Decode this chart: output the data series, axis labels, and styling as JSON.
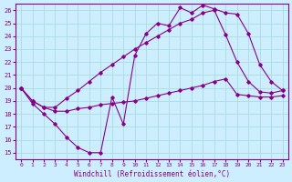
{
  "xlabel": "Windchill (Refroidissement éolien,°C)",
  "bg_color": "#cceeff",
  "line_color": "#880088",
  "grid_color": "#aadddd",
  "xlim": [
    -0.5,
    23.5
  ],
  "ylim": [
    14.5,
    26.5
  ],
  "xticks": [
    0,
    1,
    2,
    3,
    4,
    5,
    6,
    7,
    8,
    9,
    10,
    11,
    12,
    13,
    14,
    15,
    16,
    17,
    18,
    19,
    20,
    21,
    22,
    23
  ],
  "yticks": [
    15,
    16,
    17,
    18,
    19,
    20,
    21,
    22,
    23,
    24,
    25,
    26
  ],
  "line1_x": [
    0,
    1,
    2,
    3,
    4,
    5,
    6,
    7,
    8,
    9,
    10,
    11,
    12,
    13,
    14,
    15,
    16,
    17,
    18,
    19,
    20,
    21,
    22,
    23
  ],
  "line1_y": [
    20.0,
    18.8,
    18.0,
    17.2,
    16.2,
    15.4,
    15.0,
    15.0,
    19.3,
    17.2,
    22.5,
    24.2,
    25.0,
    24.8,
    26.2,
    25.8,
    26.4,
    26.1,
    25.8,
    25.7,
    24.2,
    21.8,
    20.5,
    19.8
  ],
  "line2_x": [
    0,
    1,
    2,
    3,
    4,
    5,
    6,
    7,
    8,
    9,
    10,
    11,
    12,
    13,
    14,
    15,
    16,
    17,
    18,
    19,
    20,
    21,
    22,
    23
  ],
  "line2_y": [
    20.0,
    19.0,
    18.5,
    18.2,
    18.2,
    18.4,
    18.5,
    18.7,
    18.8,
    18.9,
    19.0,
    19.2,
    19.4,
    19.6,
    19.8,
    20.0,
    20.2,
    20.5,
    20.7,
    19.5,
    19.4,
    19.3,
    19.3,
    19.4
  ],
  "line3_x": [
    0,
    1,
    2,
    3,
    4,
    5,
    6,
    7,
    8,
    9,
    10,
    11,
    12,
    13,
    14,
    15,
    16,
    17,
    18,
    19,
    20,
    21,
    22,
    23
  ],
  "line3_y": [
    20.0,
    19.0,
    18.5,
    18.5,
    19.2,
    19.8,
    20.5,
    21.2,
    21.8,
    22.4,
    23.0,
    23.5,
    24.0,
    24.5,
    25.0,
    25.3,
    25.8,
    26.0,
    24.1,
    22.0,
    20.5,
    19.7,
    19.6,
    19.8
  ]
}
